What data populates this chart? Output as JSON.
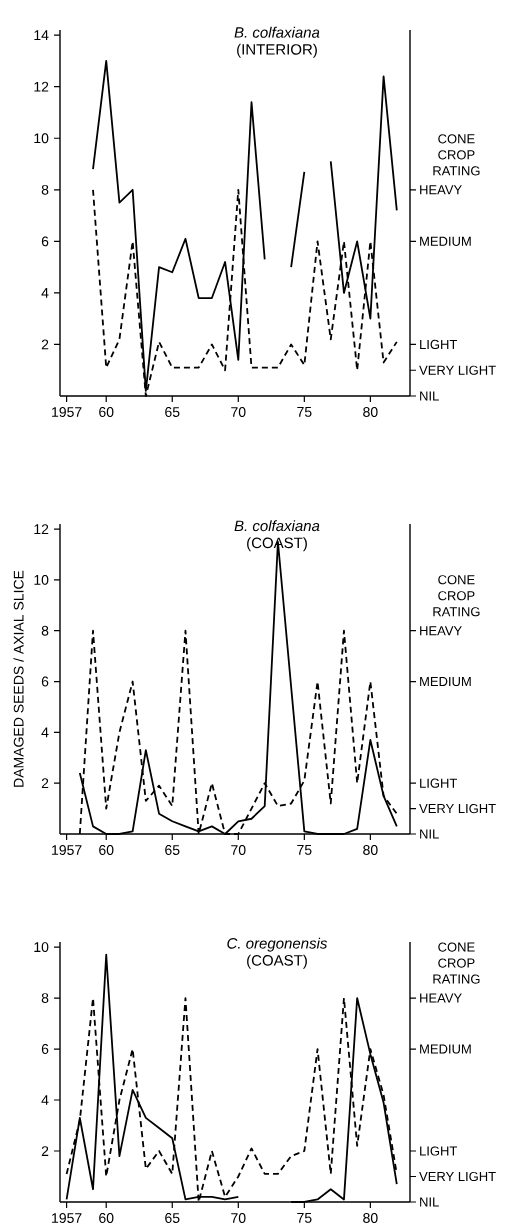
{
  "chart_data": [
    {
      "type": "line",
      "title": "B. colfaxiana",
      "subtitle": "(INTERIOR)",
      "y2label": "CONE CROP RATING",
      "marker": "none",
      "x": [
        1959,
        1960,
        1961,
        1962,
        1963,
        1964,
        1965,
        1966,
        1967,
        1968,
        1969,
        1970,
        1971,
        1972,
        1973,
        1974,
        1975,
        1976,
        1977,
        1978,
        1979,
        1980,
        1981,
        1982
      ],
      "xlim": [
        1956.5,
        1983
      ],
      "xticks": [
        1957,
        {
          "value": 1960,
          "label": "60"
        },
        {
          "value": 1965,
          "label": "65"
        },
        {
          "value": 1970,
          "label": "70"
        },
        {
          "value": 1975,
          "label": "75"
        },
        {
          "value": 1980,
          "label": "80"
        }
      ],
      "ylim": [
        0,
        14.2
      ],
      "yticks": [
        2,
        4,
        6,
        8,
        10,
        12,
        14
      ],
      "y2_categories": [
        "HEAVY",
        null,
        "MEDIUM",
        null,
        null,
        null,
        "LIGHT",
        "VERY LIGHT",
        "NIL"
      ],
      "series": [
        {
          "color": "#000000",
          "line_style": "solid",
          "values": [
            8.8,
            13.0,
            7.5,
            8.0,
            0.2,
            5.0,
            4.8,
            6.1,
            3.8,
            3.8,
            5.2,
            1.4,
            11.4,
            5.3,
            null,
            5.0,
            8.7,
            null,
            9.1,
            4.0,
            6.0,
            3.0,
            12.4,
            7.2
          ]
        },
        {
          "color": "#000000",
          "line_style": "dashed",
          "values": [
            8,
            1.1,
            2.2,
            6,
            0,
            2.1,
            1.1,
            1.1,
            1.1,
            2.0,
            1.0,
            8,
            1.1,
            1.1,
            1.1,
            2.0,
            1.2,
            6,
            2.2,
            6,
            1.0,
            6,
            1.3,
            2.1
          ]
        }
      ]
    },
    {
      "type": "line",
      "title": "B. colfaxiana",
      "subtitle": "(COAST)",
      "ylabel": "DAMAGED SEEDS / AXIAL SLICE",
      "y2label": "CONE CROP RATING",
      "marker": "none",
      "xlim": [
        1956.5,
        1983
      ],
      "xticks": [
        1957,
        {
          "value": 1960,
          "label": "60"
        },
        {
          "value": 1965,
          "label": "65"
        },
        {
          "value": 1970,
          "label": "70"
        },
        {
          "value": 1975,
          "label": "75"
        },
        {
          "value": 1980,
          "label": "80"
        }
      ],
      "ylim": [
        0,
        12.2
      ],
      "yticks": [
        2,
        4,
        6,
        8,
        10,
        12
      ],
      "y2_categories": [
        "HEAVY",
        null,
        "MEDIUM",
        null,
        null,
        null,
        "LIGHT",
        "VERY LIGHT",
        "NIL"
      ],
      "series": [
        {
          "color": "#000000",
          "line_style": "solid",
          "x": [
            1958,
            1959,
            1960,
            1961,
            1962,
            1963,
            1964,
            1965,
            1966,
            1967,
            1968,
            1969,
            1970,
            1971,
            1972,
            1973,
            1975,
            1976,
            1977,
            1978,
            1979,
            1980,
            1981,
            1982
          ],
          "values": [
            2.4,
            0.3,
            0,
            0,
            0.1,
            3.3,
            0.8,
            0.5,
            0.3,
            0.1,
            0.3,
            0,
            0.5,
            0.6,
            1.1,
            11.5,
            0.1,
            0,
            0,
            0,
            0.2,
            3.7,
            1.5,
            0.3
          ]
        },
        {
          "color": "#000000",
          "line_style": "dashed",
          "x": [
            1958,
            1959,
            1960,
            1961,
            1962,
            1963,
            1964,
            1965,
            1966,
            1967,
            1968,
            1969,
            1970,
            1971,
            1972,
            1973,
            1974,
            1975,
            1976,
            1977,
            1978,
            1979,
            1980,
            1981,
            1982
          ],
          "values": [
            0,
            8,
            1,
            4,
            6,
            1.3,
            1.9,
            1.1,
            8,
            0,
            2,
            0,
            0,
            1,
            2,
            1.1,
            1.2,
            2.1,
            6,
            1.2,
            8,
            2,
            6,
            1.5,
            0.8
          ]
        }
      ]
    },
    {
      "type": "line",
      "title": "C. oregonensis",
      "subtitle": "(COAST)",
      "y2label": "CONE CROP RATING",
      "marker": "none",
      "xlim": [
        1956.5,
        1983
      ],
      "xticks": [
        1957,
        {
          "value": 1960,
          "label": "60"
        },
        {
          "value": 1965,
          "label": "65"
        },
        {
          "value": 1970,
          "label": "70"
        },
        {
          "value": 1975,
          "label": "75"
        },
        {
          "value": 1980,
          "label": "80"
        }
      ],
      "ylim": [
        0,
        10.2
      ],
      "yticks": [
        2,
        4,
        6,
        8,
        10
      ],
      "y2_categories": [
        "HEAVY",
        null,
        "MEDIUM",
        null,
        null,
        null,
        "LIGHT",
        "VERY LIGHT",
        "NIL"
      ],
      "series": [
        {
          "color": "#000000",
          "line_style": "solid",
          "x": [
            1957,
            1958,
            1959,
            1960,
            1961,
            1962,
            1963,
            1964,
            1965,
            1966,
            1967,
            1968,
            1969,
            1970,
            1971,
            1974,
            1975,
            1976,
            1977,
            1978,
            1979,
            1980,
            1981,
            1982
          ],
          "values": [
            0.1,
            3.3,
            0.5,
            9.7,
            1.8,
            4.4,
            3.3,
            2.9,
            2.5,
            0.1,
            0.2,
            0.2,
            0.1,
            0.2,
            null,
            0,
            0,
            0.1,
            0.5,
            0.1,
            8,
            5.8,
            3.9,
            0.7
          ]
        },
        {
          "color": "#000000",
          "line_style": "dashed",
          "x": [
            1957,
            1958,
            1959,
            1960,
            1961,
            1962,
            1963,
            1964,
            1965,
            1966,
            1967,
            1968,
            1969,
            1970,
            1971,
            1972,
            1973,
            1974,
            1975,
            1976,
            1977,
            1978,
            1979,
            1980,
            1981,
            1982
          ],
          "values": [
            1.1,
            3.2,
            8,
            1.0,
            4,
            6,
            1.3,
            2.0,
            1.1,
            8,
            0,
            2.0,
            0.2,
            1.0,
            2.1,
            1.1,
            1.1,
            1.8,
            2.0,
            6,
            1.1,
            8,
            2.2,
            6,
            4.2,
            1.1
          ]
        }
      ]
    }
  ]
}
